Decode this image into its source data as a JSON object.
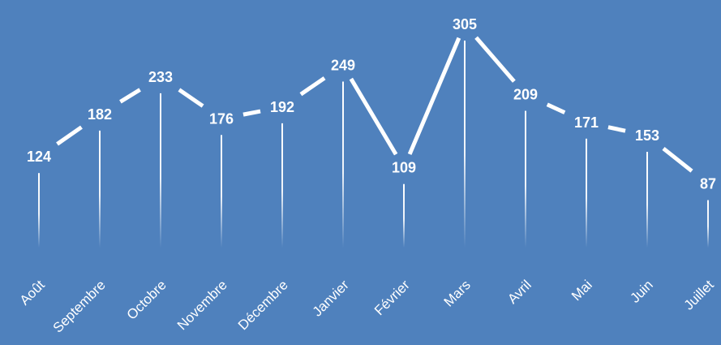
{
  "colors": {
    "background": "#4f81bd",
    "line": "#ffffff",
    "text": "#ffffff"
  },
  "chart_data": {
    "type": "line",
    "categories": [
      "Août",
      "Septembre",
      "Octobre",
      "Novembre",
      "Décembre",
      "Janvier",
      "Février",
      "Mars",
      "Avril",
      "Mai",
      "Juin",
      "Juillet"
    ],
    "series": [
      {
        "values": [
          124,
          182,
          233,
          176,
          192,
          249,
          109,
          305,
          209,
          171,
          153,
          87
        ]
      }
    ],
    "data_labels": [
      "124",
      "182",
      "233",
      "176",
      "192",
      "249",
      "109",
      "305",
      "209",
      "171",
      "153",
      "87"
    ],
    "drop_lines": true,
    "grid": false,
    "legend": "none",
    "ylim": [
      0,
      305
    ]
  }
}
